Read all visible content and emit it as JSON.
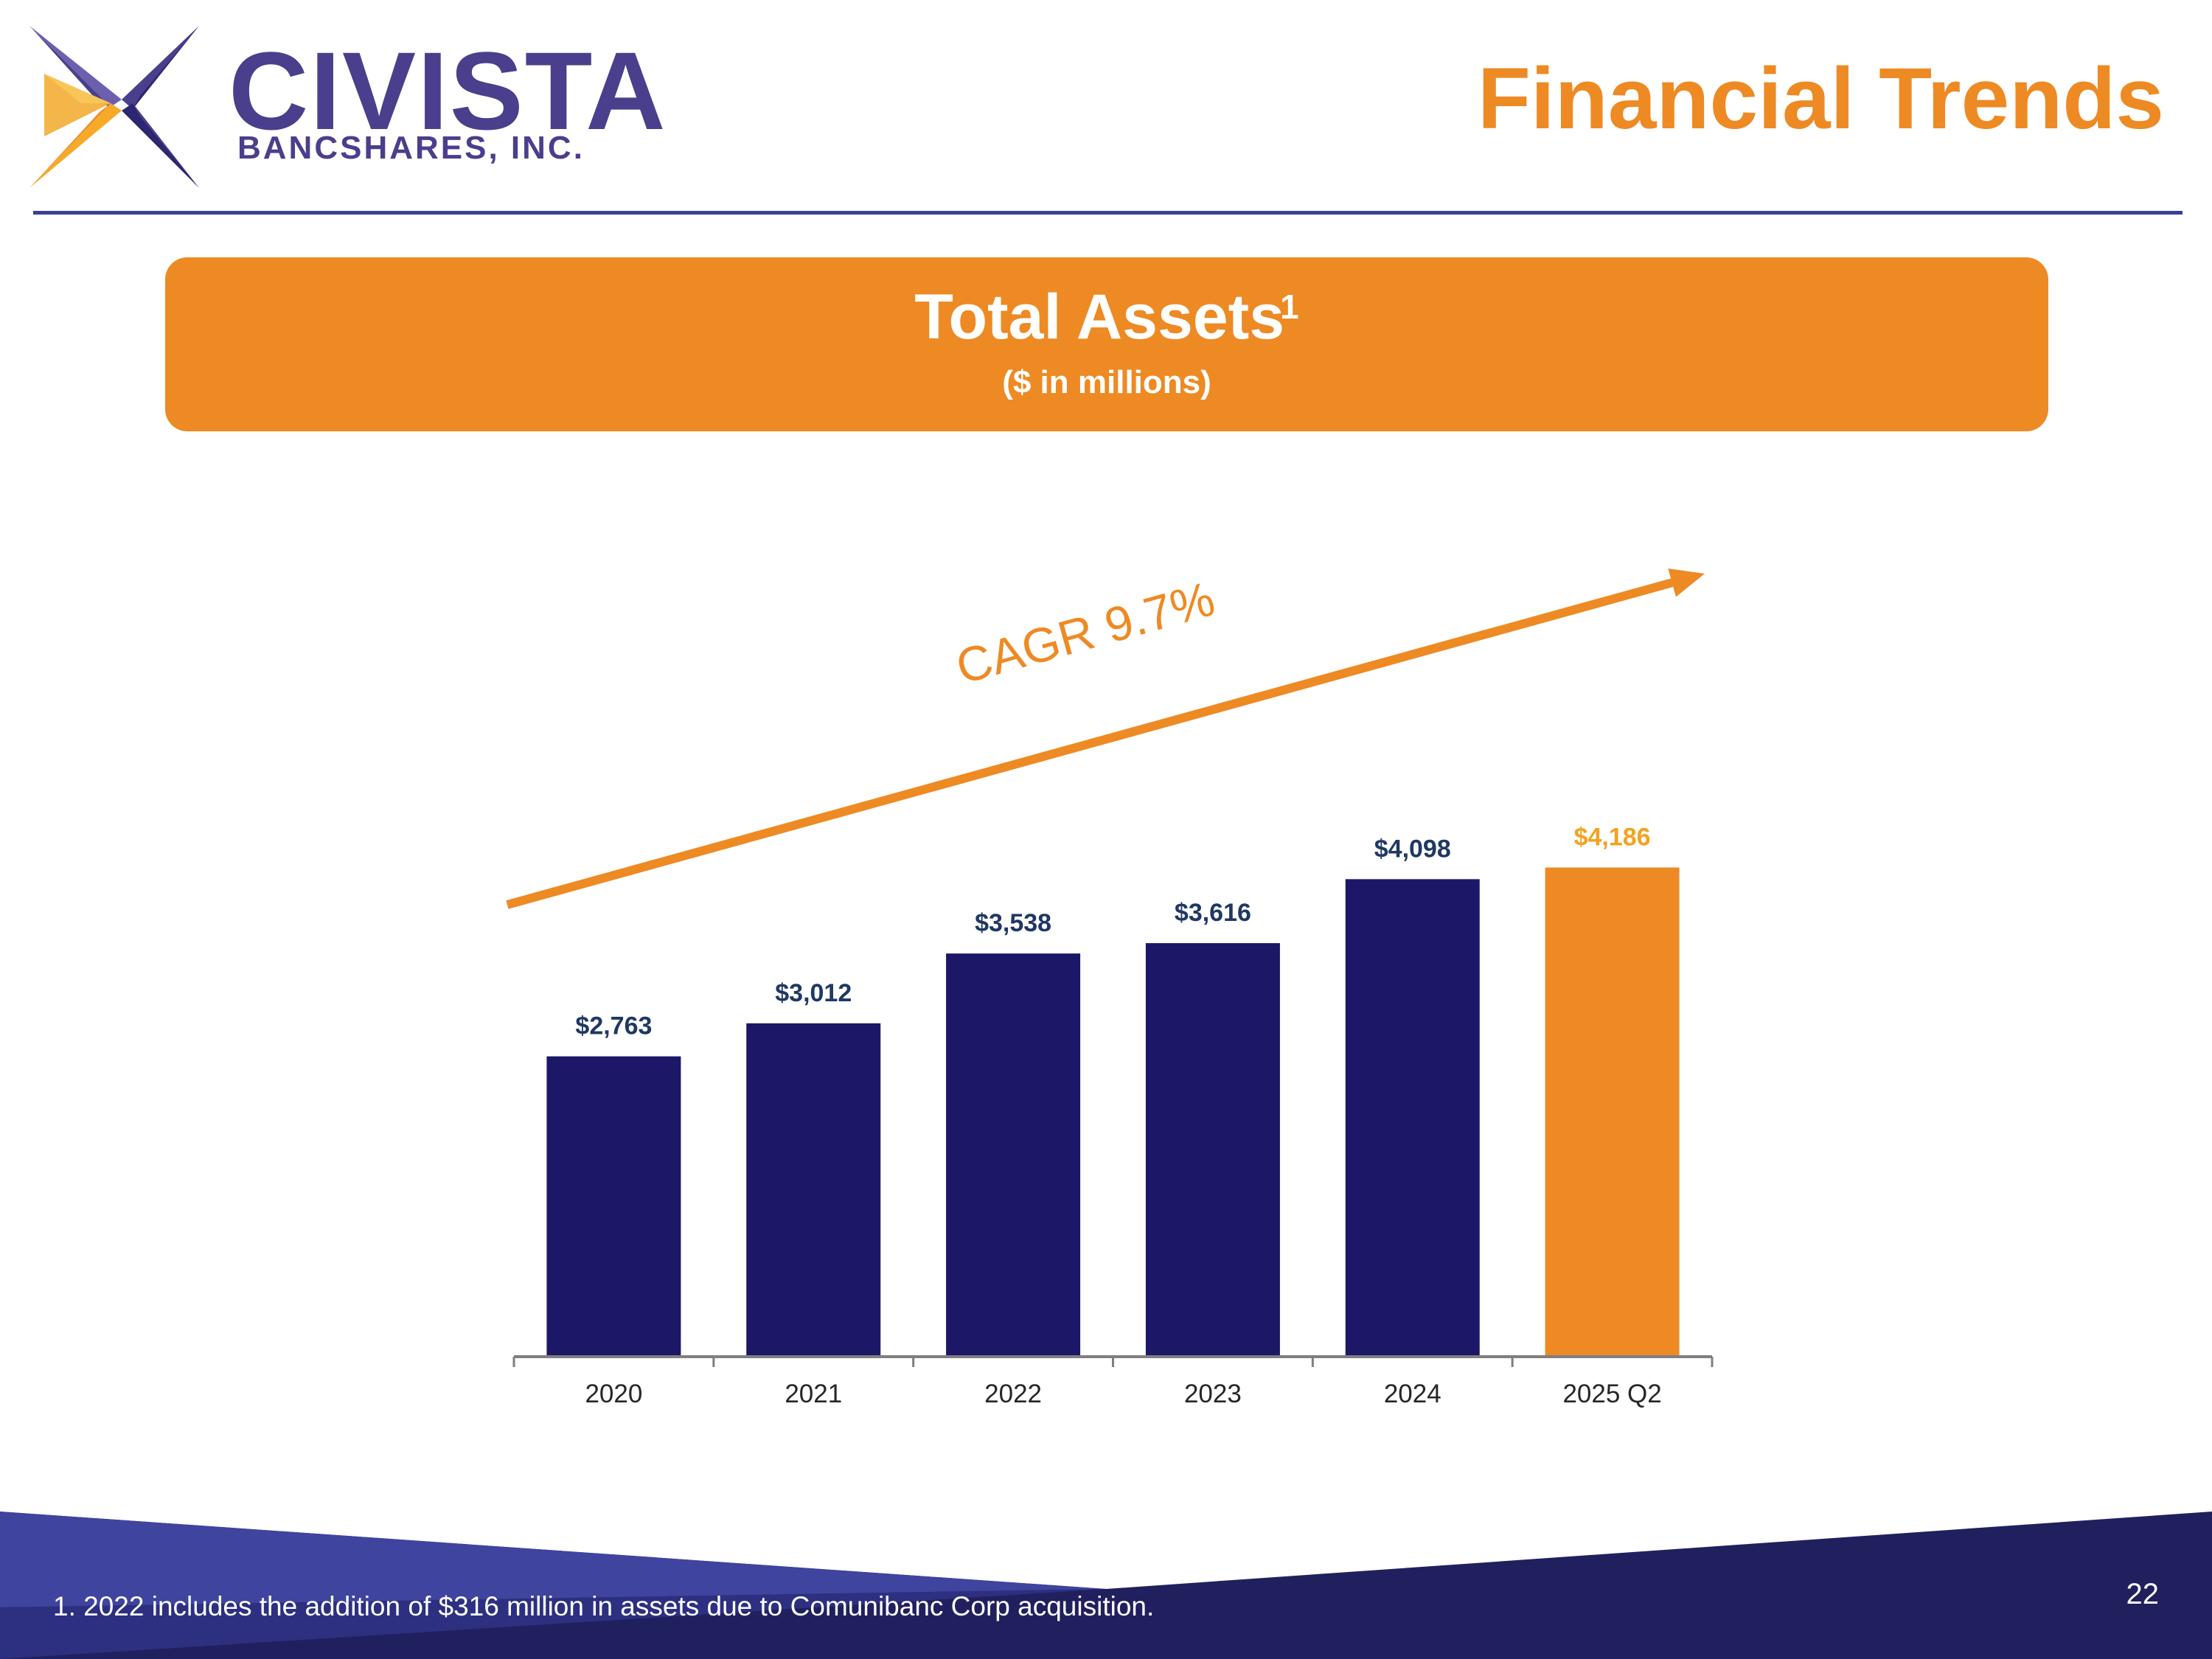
{
  "header": {
    "logo_word": "CIVISTA",
    "logo_sub": "BANCSHARES, INC.",
    "page_title": "Financial Trends"
  },
  "banner": {
    "title": "Total Assets",
    "footnote_marker": "1",
    "subtitle": "($ in millions)"
  },
  "chart_data": {
    "type": "bar",
    "title": "Total Assets",
    "subtitle": "($ in millions)",
    "categories": [
      "2020",
      "2021",
      "2022",
      "2023",
      "2024",
      "2025 Q2"
    ],
    "series": [
      {
        "values": [
          2763,
          3012,
          3538,
          3616,
          4098,
          4186
        ],
        "labels": [
          "$2,763",
          "$3,012",
          "$3,538",
          "$3,616",
          "$4,098",
          "$4,186"
        ]
      }
    ],
    "ylim": [
      500,
      4550
    ],
    "grid": false,
    "annotation": "CAGR 9.7%",
    "colors": {
      "bar": "#1c1766",
      "highlight_bar": "#ee8a24",
      "label": "#1f3864",
      "highlight_label": "#f4a21f",
      "arrow": "#ee8a24",
      "axis": "#7f7f7f"
    }
  },
  "footer": {
    "footnote": "1.  2022 includes the addition of $316 million in assets due to Comunibanc Corp acquisition.",
    "page_number": "22"
  }
}
